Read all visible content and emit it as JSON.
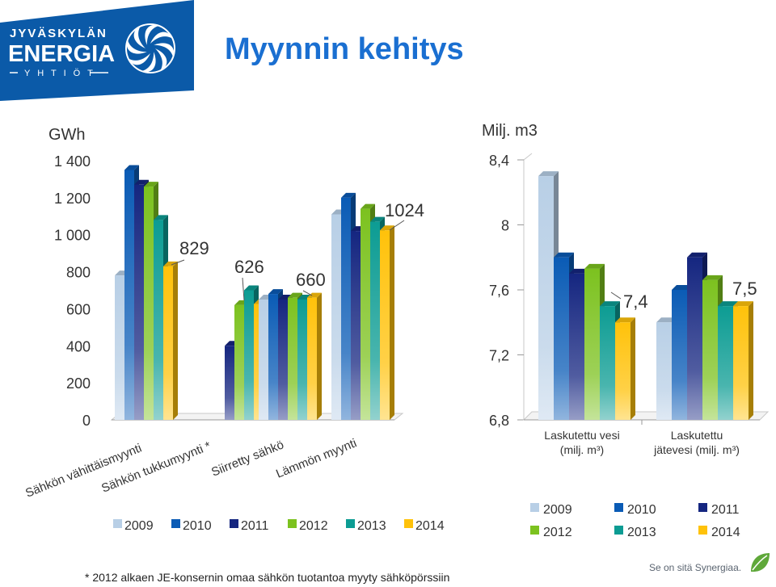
{
  "page": {
    "title": "Myynnin kehitys",
    "footnote": "* 2012 alkaen JE-konsernin omaa sähkön tuotantoa myyty sähköpörssiin",
    "slogan": "Se on sitä Synergiaa."
  },
  "logo": {
    "line1": "JYVÄSKYLÄN",
    "line2": "ENERGIA",
    "line3": "Y H T I Ö T",
    "icon": "turbine-swirl-icon"
  },
  "colors": {
    "2009": "#b8cfe6",
    "2010": "#0a5bb5",
    "2011": "#152680",
    "2012": "#7cc21f",
    "2013": "#0c9c93",
    "2014": "#ffc20a",
    "title": "#1a6fd1",
    "header_band": "#0b5aa8"
  },
  "chart_data": [
    {
      "type": "bar",
      "unit_label": "GWh",
      "ylim": [
        0,
        1400
      ],
      "yticks": [
        "0",
        "200",
        "400",
        "600",
        "800",
        "1 000",
        "1 200",
        "1 400"
      ],
      "categories": [
        "Sähkön vähittäismyynti",
        "Sähkön tukkumyynti *",
        "Siirretty sähkö",
        "Lämmön myynti"
      ],
      "series": [
        {
          "name": "2009",
          "values": [
            780,
            0,
            650,
            1110
          ]
        },
        {
          "name": "2010",
          "values": [
            1350,
            0,
            680,
            1200
          ]
        },
        {
          "name": "2011",
          "values": [
            1270,
            400,
            650,
            1020
          ]
        },
        {
          "name": "2012",
          "values": [
            1260,
            620,
            660,
            1140
          ]
        },
        {
          "name": "2013",
          "values": [
            1080,
            700,
            650,
            1070
          ]
        },
        {
          "name": "2014",
          "values": [
            829,
            626,
            660,
            1024
          ]
        }
      ],
      "annotations": [
        "829",
        "626",
        "660",
        "1024"
      ],
      "legend": [
        "2009",
        "2010",
        "2011",
        "2012",
        "2013",
        "2014"
      ],
      "legend_position": "bottom",
      "grid": false
    },
    {
      "type": "bar",
      "unit_label": "Milj. m3",
      "ylim": [
        6.8,
        8.4
      ],
      "yticks": [
        "6,8",
        "7,2",
        "7,6",
        "8",
        "8,4"
      ],
      "categories": [
        "Laskutettu vesi (milj. m³)",
        "Laskutettu jätevesi (milj. m³)"
      ],
      "series": [
        {
          "name": "2009",
          "values": [
            8.3,
            7.4
          ]
        },
        {
          "name": "2010",
          "values": [
            7.8,
            7.6
          ]
        },
        {
          "name": "2011",
          "values": [
            7.7,
            7.8
          ]
        },
        {
          "name": "2012",
          "values": [
            7.73,
            7.66
          ]
        },
        {
          "name": "2013",
          "values": [
            7.5,
            7.5
          ]
        },
        {
          "name": "2014",
          "values": [
            7.4,
            7.5
          ]
        }
      ],
      "annotations": [
        "7,4",
        "7,5"
      ],
      "legend": [
        "2009",
        "2010",
        "2011",
        "2012",
        "2013",
        "2014"
      ],
      "legend_position": "bottom",
      "grid": false
    }
  ]
}
